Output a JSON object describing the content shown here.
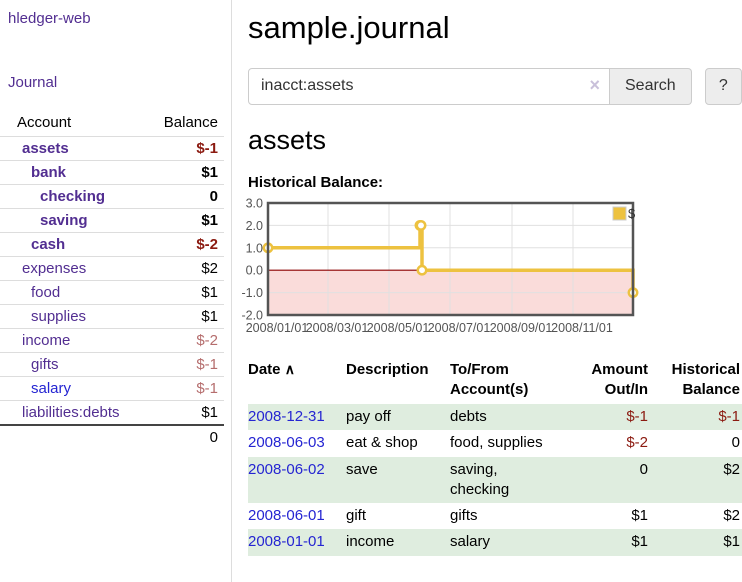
{
  "app": {
    "brand": "hledger-web"
  },
  "colors": {
    "link_purple": "#522e91",
    "link_blue": "#2525d2",
    "negative_strong": "#8b1a10",
    "negative_soft": "#b56d6d",
    "row_green": "#dfeddf",
    "series_gold": "#edc240",
    "chart_border": "#545454"
  },
  "icons": {
    "clear": "×",
    "sort_asc": "∧"
  },
  "sidebar": {
    "journal_label": "Journal",
    "headers": {
      "account": "Account",
      "balance": "Balance"
    },
    "accounts": [
      {
        "name": "assets",
        "balance": "$-1"
      },
      {
        "name": "bank",
        "balance": "$1"
      },
      {
        "name": "checking",
        "balance": "0"
      },
      {
        "name": "saving",
        "balance": "$1"
      },
      {
        "name": "cash",
        "balance": "$-2"
      },
      {
        "name": "expenses",
        "balance": "$2"
      },
      {
        "name": "food",
        "balance": "$1"
      },
      {
        "name": "supplies",
        "balance": "$1"
      },
      {
        "name": "income",
        "balance": "$-2"
      },
      {
        "name": "gifts",
        "balance": "$-1"
      },
      {
        "name": "salary",
        "balance": "$-1"
      },
      {
        "name": "liabilities:debts",
        "balance": "$1"
      }
    ],
    "total": "0"
  },
  "main": {
    "title": "sample.journal",
    "search": {
      "value": "inacct:assets",
      "button_label": "Search",
      "help_label": "?"
    },
    "account_heading": "assets",
    "chart_label": "Historical Balance:"
  },
  "chart_data": {
    "type": "line",
    "step": true,
    "title": "Historical Balance:",
    "x_range": [
      "2008-01-01",
      "2008-12-31"
    ],
    "ylim": [
      -2,
      3
    ],
    "x_ticks": [
      "2008/01/01",
      "2008/03/01",
      "2008/05/01",
      "2008/07/01",
      "2008/09/01",
      "2008/11/01"
    ],
    "y_ticks": [
      "3.0",
      "2.0",
      "1.0",
      "0.0",
      "-1.0",
      "-2.0"
    ],
    "grid": true,
    "legend": {
      "label": "$",
      "position": "top-right"
    },
    "series": [
      {
        "name": "$",
        "color": "#edc240",
        "points": [
          {
            "date": "2008-01-01",
            "value": 1
          },
          {
            "date": "2008-06-01",
            "value": 2
          },
          {
            "date": "2008-06-02",
            "value": 2
          },
          {
            "date": "2008-06-03",
            "value": 0
          },
          {
            "date": "2008-12-31",
            "value": -1
          }
        ]
      }
    ],
    "colors": {
      "negative_region": "#fadcda",
      "zero_line": "#8b0000",
      "gridline": "#e0e0e0",
      "tick_text": "#545454"
    }
  },
  "register": {
    "headers": [
      "Date",
      "Description",
      "To/From Account(s)",
      "Amount Out/In",
      "Historical Balance"
    ],
    "rows": [
      {
        "date": "2008-12-31",
        "description": "pay off",
        "accounts": "debts",
        "amount": "$-1",
        "balance": "$-1"
      },
      {
        "date": "2008-06-03",
        "description": "eat & shop",
        "accounts": "food, supplies",
        "amount": "$-2",
        "balance": "0"
      },
      {
        "date": "2008-06-02",
        "description": "save",
        "accounts": "saving,\nchecking",
        "amount": "0",
        "balance": "$2"
      },
      {
        "date": "2008-06-01",
        "description": "gift",
        "accounts": "gifts",
        "amount": "$1",
        "balance": "$2"
      },
      {
        "date": "2008-01-01",
        "description": "income",
        "accounts": "salary",
        "amount": "$1",
        "balance": "$1"
      }
    ]
  }
}
